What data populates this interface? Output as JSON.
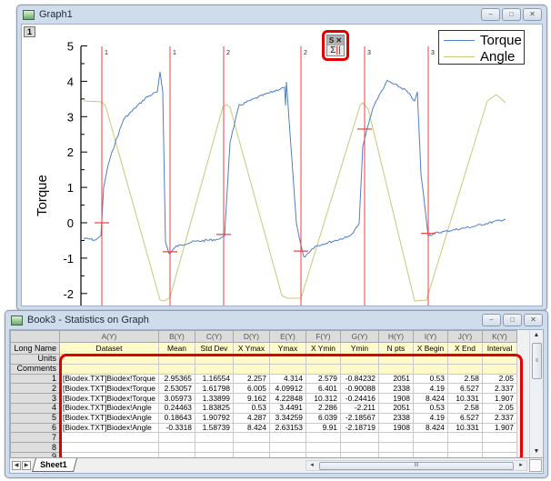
{
  "graph_window": {
    "title": "Graph1",
    "layer_label": "1",
    "buttons": {
      "minimize": "–",
      "maximize": "□",
      "close": "✕"
    },
    "gadget": {
      "top_label": "S ✕",
      "sigma": "Σ",
      "bars": "||"
    },
    "legend": [
      {
        "label": "Torque",
        "color": "#4f7fc4"
      },
      {
        "label": "Angle",
        "color": "#c8c87a"
      }
    ]
  },
  "chart_data": {
    "type": "line",
    "title": "",
    "xlabel": "",
    "ylabel": "Torque",
    "ylim": [
      -2.3,
      5
    ],
    "y_ticks": [
      5,
      4,
      3,
      2,
      1,
      0,
      -1,
      -2
    ],
    "grid": false,
    "legend_position": "top-right",
    "series": [
      {
        "name": "Torque",
        "color": "#4f7fc4",
        "points_desc": "low ~-0.4, rises to ~3.6-4.3 plateau, drops to ~-1, repeated 3 cycles, ending near 0"
      },
      {
        "name": "Angle",
        "color": "#c8c87a",
        "points_desc": "plateau ~3.45, linear descent to ~-2.2, linear ascent to ~3.5, repeated; ends at plateau ~3.4"
      }
    ],
    "cursor_lines": [
      {
        "label": "1",
        "mark_y": 0
      },
      {
        "label": "1",
        "mark_y": -0.82
      },
      {
        "label": "2",
        "mark_y": -0.33
      },
      {
        "label": "2",
        "mark_y": -0.8
      },
      {
        "label": "3",
        "mark_y": 2.65
      },
      {
        "label": "3",
        "mark_y": -0.3
      }
    ]
  },
  "book_window": {
    "title": "Book3 - Statistics on Graph",
    "buttons": {
      "minimize": "–",
      "maximize": "□",
      "close": "✕"
    },
    "columns": [
      "A(Y)",
      "B(Y)",
      "C(Y)",
      "D(Y)",
      "E(Y)",
      "F(Y)",
      "G(Y)",
      "H(Y)",
      "I(Y)",
      "J(Y)",
      "K(Y)"
    ],
    "meta_row_labels": [
      "Long Name",
      "Units",
      "Comments"
    ],
    "long_names": [
      "Dataset",
      "Mean",
      "Std Dev",
      "X Ymax",
      "Ymax",
      "X Ymin",
      "Ymin",
      "N pts",
      "X Begin",
      "X End",
      "Interval"
    ],
    "rows": [
      {
        "n": "1",
        "cells": [
          "[Biodex.TXT]Biodex!Torque",
          "2.95365",
          "1.16554",
          "2.257",
          "4.314",
          "2.579",
          "-0.84232",
          "2051",
          "0.53",
          "2.58",
          "2.05"
        ]
      },
      {
        "n": "2",
        "cells": [
          "[Biodex.TXT]Biodex!Torque",
          "2.53057",
          "1.61798",
          "6.005",
          "4.09912",
          "6.401",
          "-0.90088",
          "2338",
          "4.19",
          "6.527",
          "2.337"
        ]
      },
      {
        "n": "3",
        "cells": [
          "[Biodex.TXT]Biodex!Torque",
          "3.05973",
          "1.33899",
          "9.162",
          "4.22848",
          "10.312",
          "-0.24416",
          "1908",
          "8.424",
          "10.331",
          "1.907"
        ]
      },
      {
        "n": "4",
        "cells": [
          "[Biodex.TXT]Biodex!Angle",
          "0.24463",
          "1.83825",
          "0.53",
          "3.4491",
          "2.286",
          "-2.211",
          "2051",
          "0.53",
          "2.58",
          "2.05"
        ]
      },
      {
        "n": "5",
        "cells": [
          "[Biodex.TXT]Biodex!Angle",
          "0.18643",
          "1.90792",
          "4.287",
          "3.34259",
          "6.039",
          "-2.18567",
          "2338",
          "4.19",
          "6.527",
          "2.337"
        ]
      },
      {
        "n": "6",
        "cells": [
          "[Biodex.TXT]Biodex!Angle",
          "-0.3318",
          "1.58739",
          "8.424",
          "2.63153",
          "9.91",
          "-2.18719",
          "1908",
          "8.424",
          "10.331",
          "1.907"
        ]
      },
      {
        "n": "7",
        "cells": [
          "",
          "",
          "",
          "",
          "",
          "",
          "",
          "",
          "",
          "",
          ""
        ]
      },
      {
        "n": "8",
        "cells": [
          "",
          "",
          "",
          "",
          "",
          "",
          "",
          "",
          "",
          "",
          ""
        ]
      },
      {
        "n": "9",
        "cells": [
          "",
          "",
          "",
          "",
          "",
          "",
          "",
          "",
          "",
          "",
          ""
        ]
      }
    ],
    "sheet_tab": "Sheet1",
    "hscroll_grip": "III",
    "vscroll_grip": "≡"
  }
}
